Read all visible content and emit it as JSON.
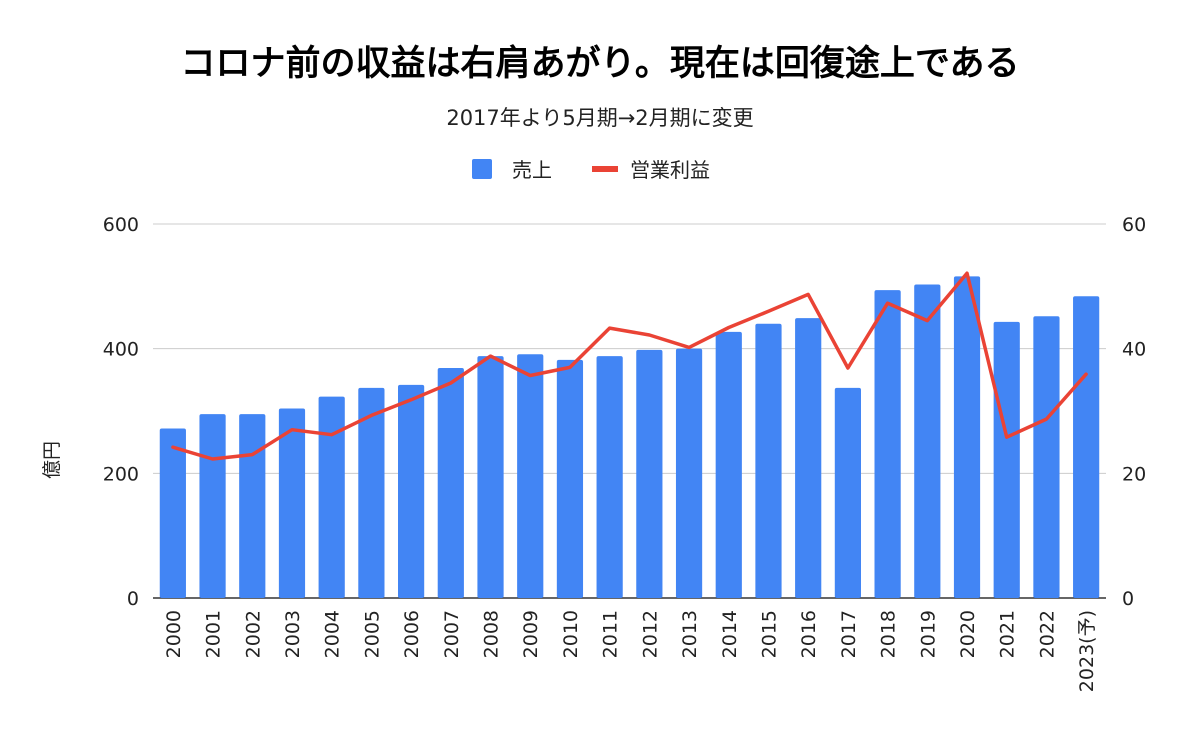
{
  "chart_data": {
    "type": "bar",
    "title": "コロナ前の収益は右肩あがり。現在は回復途上である",
    "subtitle": "2017年より5月期→2月期に変更",
    "ylabel": "億円",
    "y2label": "",
    "ylim": [
      0,
      600
    ],
    "y2lim": [
      0,
      60
    ],
    "yticks": [
      "0",
      "200",
      "400",
      "600"
    ],
    "y2ticks": [
      "0",
      "20",
      "40",
      "60"
    ],
    "grid": true,
    "legend_position": "top-center",
    "categories": [
      "2000",
      "2001",
      "2002",
      "2003",
      "2004",
      "2005",
      "2006",
      "2007",
      "2008",
      "2009",
      "2010",
      "2011",
      "2012",
      "2013",
      "2014",
      "2015",
      "2016",
      "2017",
      "2018",
      "2019",
      "2020",
      "2021",
      "2022",
      "2023(予)"
    ],
    "series": [
      {
        "name": "売上",
        "kind": "bar",
        "axis": "left",
        "color": "#4285f4",
        "values": [
          272,
          295,
          295,
          304,
          323,
          337,
          342,
          369,
          388,
          391,
          382,
          388,
          398,
          400,
          427,
          440,
          449,
          337,
          494,
          503,
          516,
          443,
          452,
          484
        ]
      },
      {
        "name": "営業利益",
        "kind": "line",
        "axis": "right",
        "color": "#ea4335",
        "values": [
          24.2,
          22.3,
          23.0,
          27.0,
          26.2,
          29.3,
          31.8,
          34.5,
          38.8,
          35.7,
          37.0,
          43.3,
          42.2,
          40.2,
          43.4,
          46.0,
          48.7,
          36.9,
          47.3,
          44.5,
          52.1,
          25.8,
          28.7,
          35.9
        ]
      }
    ]
  }
}
